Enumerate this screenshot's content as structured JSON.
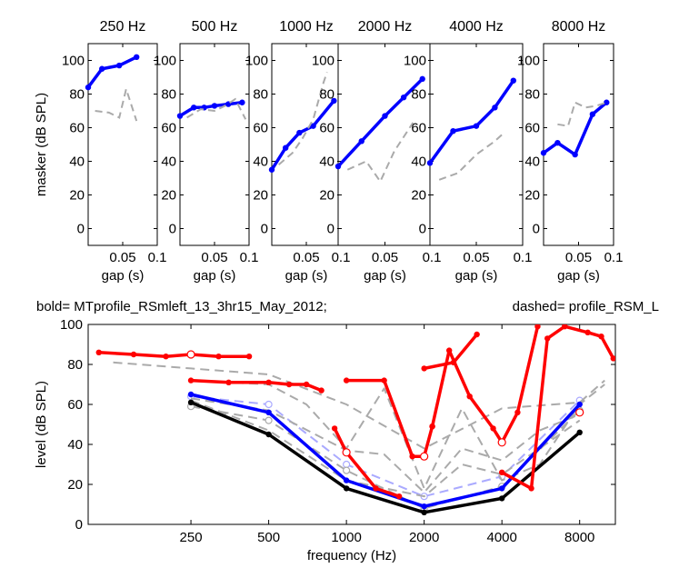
{
  "figure": {
    "header_left": "bold= MTprofile_RSmleft_13_3hr15_May_2012;",
    "header_right": "dashed=  profile_RSM_L"
  },
  "colors": {
    "blue": "#0000ff",
    "red": "#ff0000",
    "black": "#000000",
    "gray": "#aaaaaa",
    "light_blue": "#aaaaff",
    "axis": "#000000"
  },
  "chart_data": [
    {
      "type": "line",
      "title": "250 Hz",
      "xlabel": "gap (s)",
      "ylabel": "masker (dB SPL)",
      "xlim": [
        0,
        0.1
      ],
      "ylim": [
        -10,
        110
      ],
      "xticks": [
        0.05,
        0.1
      ],
      "yticks": [
        0,
        20,
        40,
        60,
        80,
        100
      ],
      "series": [
        {
          "style": "bold",
          "color": "#0000ff",
          "x": [
            0,
            0.02,
            0.045,
            0.07
          ],
          "y": [
            84,
            95,
            97,
            102
          ]
        },
        {
          "style": "dashed",
          "color": "#aaaaaa",
          "x": [
            0.01,
            0.03,
            0.045,
            0.055,
            0.07
          ],
          "y": [
            70,
            69,
            66,
            83,
            64
          ]
        }
      ]
    },
    {
      "type": "line",
      "title": "500 Hz",
      "xlabel": "gap (s)",
      "ylabel": "",
      "xlim": [
        0,
        0.1
      ],
      "ylim": [
        -10,
        110
      ],
      "xticks": [
        0.05,
        0.1
      ],
      "yticks": [
        0,
        20,
        40,
        60,
        80,
        100
      ],
      "series": [
        {
          "style": "bold",
          "color": "#0000ff",
          "x": [
            0,
            0.02,
            0.035,
            0.05,
            0.07,
            0.09
          ],
          "y": [
            67,
            72,
            72,
            73,
            74,
            75
          ]
        },
        {
          "style": "dashed",
          "color": "#aaaaaa",
          "x": [
            0.01,
            0.03,
            0.05,
            0.065,
            0.08,
            0.095
          ],
          "y": [
            66,
            71,
            70,
            73,
            77,
            65
          ]
        }
      ]
    },
    {
      "type": "line",
      "title": "1000 Hz",
      "xlabel": "gap (s)",
      "ylabel": "",
      "xlim": [
        0,
        0.1
      ],
      "ylim": [
        -10,
        110
      ],
      "xticks": [
        0.05,
        0.1
      ],
      "yticks": [
        0,
        20,
        40,
        60,
        80,
        100
      ],
      "series": [
        {
          "style": "bold",
          "color": "#0000ff",
          "x": [
            0,
            0.02,
            0.04,
            0.06,
            0.09
          ],
          "y": [
            35,
            48,
            57,
            61,
            76
          ]
        },
        {
          "style": "dashed",
          "color": "#aaaaaa",
          "x": [
            0.01,
            0.03,
            0.045,
            0.06,
            0.075,
            0.08
          ],
          "y": [
            38,
            45,
            54,
            65,
            87,
            93
          ]
        }
      ]
    },
    {
      "type": "line",
      "title": "2000 Hz",
      "xlabel": "gap (s)",
      "ylabel": "",
      "xlim": [
        0,
        0.1
      ],
      "ylim": [
        -10,
        110
      ],
      "xticks": [
        0.05,
        0.1
      ],
      "yticks": [
        0,
        20,
        40,
        60,
        80,
        100
      ],
      "series": [
        {
          "style": "bold",
          "color": "#0000ff",
          "x": [
            0,
            0.025,
            0.05,
            0.07,
            0.09
          ],
          "y": [
            37,
            52,
            67,
            78,
            89
          ]
        },
        {
          "style": "dashed",
          "color": "#aaaaaa",
          "x": [
            0.01,
            0.03,
            0.045,
            0.06,
            0.08
          ],
          "y": [
            35,
            40,
            28,
            46,
            63
          ]
        }
      ]
    },
    {
      "type": "line",
      "title": "4000 Hz",
      "xlabel": "gap (s)",
      "ylabel": "",
      "xlim": [
        0,
        0.1
      ],
      "ylim": [
        -10,
        110
      ],
      "xticks": [
        0.05,
        0.1
      ],
      "yticks": [
        0,
        20,
        40,
        60,
        80,
        100
      ],
      "series": [
        {
          "style": "bold",
          "color": "#0000ff",
          "x": [
            0,
            0.025,
            0.05,
            0.07,
            0.09
          ],
          "y": [
            39,
            58,
            61,
            72,
            88
          ]
        },
        {
          "style": "dashed",
          "color": "#aaaaaa",
          "x": [
            0.01,
            0.03,
            0.05,
            0.07,
            0.08
          ],
          "y": [
            29,
            33,
            44,
            52,
            57
          ]
        }
      ]
    },
    {
      "type": "line",
      "title": "8000 Hz",
      "xlabel": "gap (s)",
      "ylabel": "",
      "xlim": [
        0,
        0.1
      ],
      "ylim": [
        -10,
        110
      ],
      "xticks": [
        0.05,
        0.1
      ],
      "yticks": [
        0,
        20,
        40,
        60,
        80,
        100
      ],
      "series": [
        {
          "style": "bold",
          "color": "#0000ff",
          "x": [
            0,
            0.02,
            0.045,
            0.07,
            0.09
          ],
          "y": [
            45,
            51,
            44,
            68,
            75
          ]
        },
        {
          "style": "dashed",
          "color": "#aaaaaa",
          "x": [
            0.02,
            0.035,
            0.045,
            0.06,
            0.075,
            0.09
          ],
          "y": [
            62,
            61,
            75,
            72,
            73,
            75
          ]
        }
      ]
    },
    {
      "type": "line",
      "title": "",
      "xlabel": "frequency (Hz)",
      "ylabel": "level (dB SPL)",
      "xscale": "log2",
      "xlim": [
        100,
        11000
      ],
      "ylim": [
        0,
        100
      ],
      "xticks": [
        250,
        500,
        1000,
        2000,
        4000,
        8000
      ],
      "yticks": [
        0,
        20,
        40,
        60,
        80,
        100
      ],
      "series": [
        {
          "style": "bold",
          "color": "#000000",
          "marker": "dot",
          "x": [
            250,
            500,
            1000,
            2000,
            4000,
            8000
          ],
          "y": [
            61,
            45,
            18,
            6,
            13,
            46
          ]
        },
        {
          "style": "bold",
          "color": "#0000ff",
          "marker": "dot",
          "x": [
            250,
            500,
            1000,
            2000,
            4000,
            8000
          ],
          "y": [
            65,
            56,
            22,
            9,
            18,
            60
          ]
        },
        {
          "style": "dashed",
          "color": "#aaaaff",
          "marker": "open",
          "x": [
            250,
            500,
            1000,
            2000,
            4000,
            8000
          ],
          "y": [
            64,
            60,
            30,
            14,
            24,
            62
          ]
        },
        {
          "style": "dashed",
          "color": "#aaaaaa",
          "marker": "open",
          "x": [
            250,
            500,
            1000,
            2000,
            4000,
            8000
          ],
          "y": [
            59,
            52,
            27,
            8,
            19,
            57
          ]
        },
        {
          "style": "dashed",
          "color": "#aaaaaa",
          "x": [
            125,
            250,
            500,
            1000,
            2000,
            4000,
            8000,
            10000
          ],
          "y": [
            81,
            78,
            75,
            60,
            38,
            58,
            61,
            72
          ]
        },
        {
          "style": "dashed",
          "color": "#aaaaaa",
          "x": [
            250,
            500,
            700,
            1000,
            1400,
            2000,
            2800,
            4000,
            5600,
            8000,
            10000
          ],
          "y": [
            72,
            70,
            60,
            38,
            68,
            18,
            58,
            22,
            30,
            60,
            70
          ]
        },
        {
          "style": "dashed",
          "color": "#aaaaaa",
          "x": [
            250,
            500,
            1000,
            1400,
            2000,
            2800,
            4000,
            5600,
            8000
          ],
          "y": [
            63,
            57,
            37,
            35,
            16,
            38,
            32,
            47,
            55
          ]
        },
        {
          "style": "dashed",
          "color": "#aaaaaa",
          "x": [
            250,
            500,
            1000,
            2000,
            2800,
            4000,
            5600,
            8000
          ],
          "y": [
            62,
            47,
            22,
            14,
            30,
            25,
            38,
            52
          ]
        },
        {
          "style": "bold",
          "color": "#ff0000",
          "marker": "dot",
          "x": [
            110,
            150,
            200,
            250,
            320,
            420
          ],
          "y": [
            86,
            85,
            84,
            85,
            84,
            84
          ]
        },
        {
          "style": "bold",
          "color": "#ff0000",
          "marker": "dot",
          "x": [
            250,
            350,
            500,
            600,
            700,
            800
          ],
          "y": [
            72,
            71,
            71,
            70,
            70,
            67
          ]
        },
        {
          "style": "bold",
          "color": "#ff0000",
          "marker": "dot",
          "x": [
            900,
            1000,
            1300,
            1600
          ],
          "y": [
            48,
            36,
            18,
            14
          ]
        },
        {
          "style": "bold",
          "color": "#ff0000",
          "marker": "dot",
          "x": [
            1000,
            1400,
            1800,
            2000,
            2150
          ],
          "y": [
            72,
            72,
            34,
            34,
            49
          ]
        },
        {
          "style": "bold",
          "color": "#ff0000",
          "marker": "dot",
          "x": [
            2000,
            2600,
            3200
          ],
          "y": [
            78,
            81,
            95
          ]
        },
        {
          "style": "bold",
          "color": "#ff0000",
          "marker": "dot",
          "x": [
            2150,
            2500,
            3000,
            3700,
            4000,
            4600,
            5500
          ],
          "y": [
            49,
            87,
            64,
            48,
            41,
            56,
            99
          ]
        },
        {
          "style": "bold",
          "color": "#ff0000",
          "marker": "dot",
          "x": [
            4000,
            5200,
            6000,
            7000,
            8600,
            9700,
            10800
          ],
          "y": [
            26,
            18,
            93,
            99,
            96,
            94,
            83
          ]
        }
      ]
    }
  ]
}
